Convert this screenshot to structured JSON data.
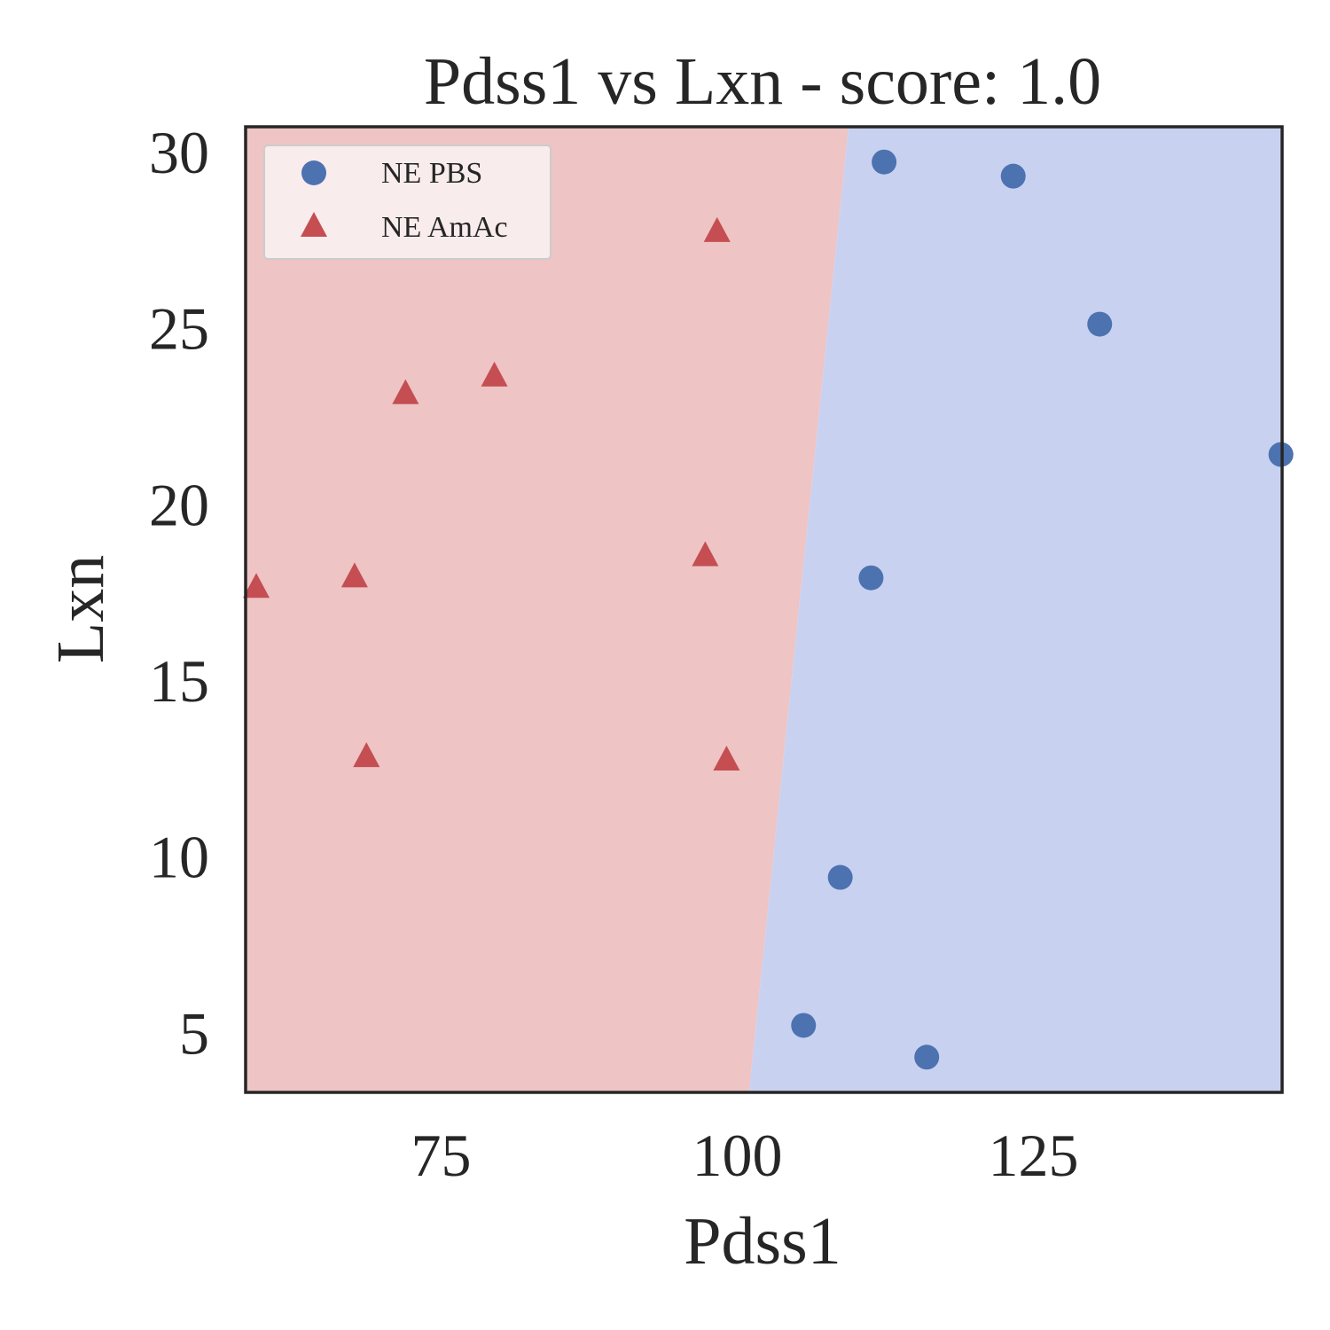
{
  "chart_data": {
    "type": "scatter",
    "title": "Pdss1 vs Lxn - score: 1.0",
    "xlabel": "Pdss1",
    "ylabel": "Lxn",
    "xlim": [
      58.5,
      146.0
    ],
    "ylim": [
      3.3,
      30.7
    ],
    "xticks": [
      75,
      100,
      125
    ],
    "yticks": [
      5,
      10,
      15,
      20,
      25,
      30
    ],
    "grid": false,
    "legend_position": "top-left",
    "decision_boundary": [
      [
        109.4,
        30.7
      ],
      [
        101.0,
        3.3
      ]
    ],
    "regions": [
      {
        "side": "left",
        "label_series": "NE AmAc",
        "color": "#eec4c4"
      },
      {
        "side": "right",
        "label_series": "NE PBS",
        "color": "#c9d1f1"
      }
    ],
    "series": [
      {
        "name": "NE PBS",
        "marker": "circle",
        "color": "#4c72b0",
        "points": [
          [
            112.4,
            29.7
          ],
          [
            123.3,
            29.3
          ],
          [
            130.6,
            25.1
          ],
          [
            145.9,
            21.4
          ],
          [
            111.3,
            17.9
          ],
          [
            108.7,
            9.4
          ],
          [
            105.6,
            5.2
          ],
          [
            116.0,
            4.3
          ]
        ]
      },
      {
        "name": "NE AmAc",
        "marker": "triangle",
        "color": "#c44e52",
        "points": [
          [
            98.3,
            27.7
          ],
          [
            72.0,
            23.1
          ],
          [
            79.5,
            23.6
          ],
          [
            59.4,
            17.6
          ],
          [
            67.7,
            17.9
          ],
          [
            97.3,
            18.5
          ],
          [
            68.7,
            12.8
          ],
          [
            99.1,
            12.7
          ]
        ]
      }
    ]
  }
}
